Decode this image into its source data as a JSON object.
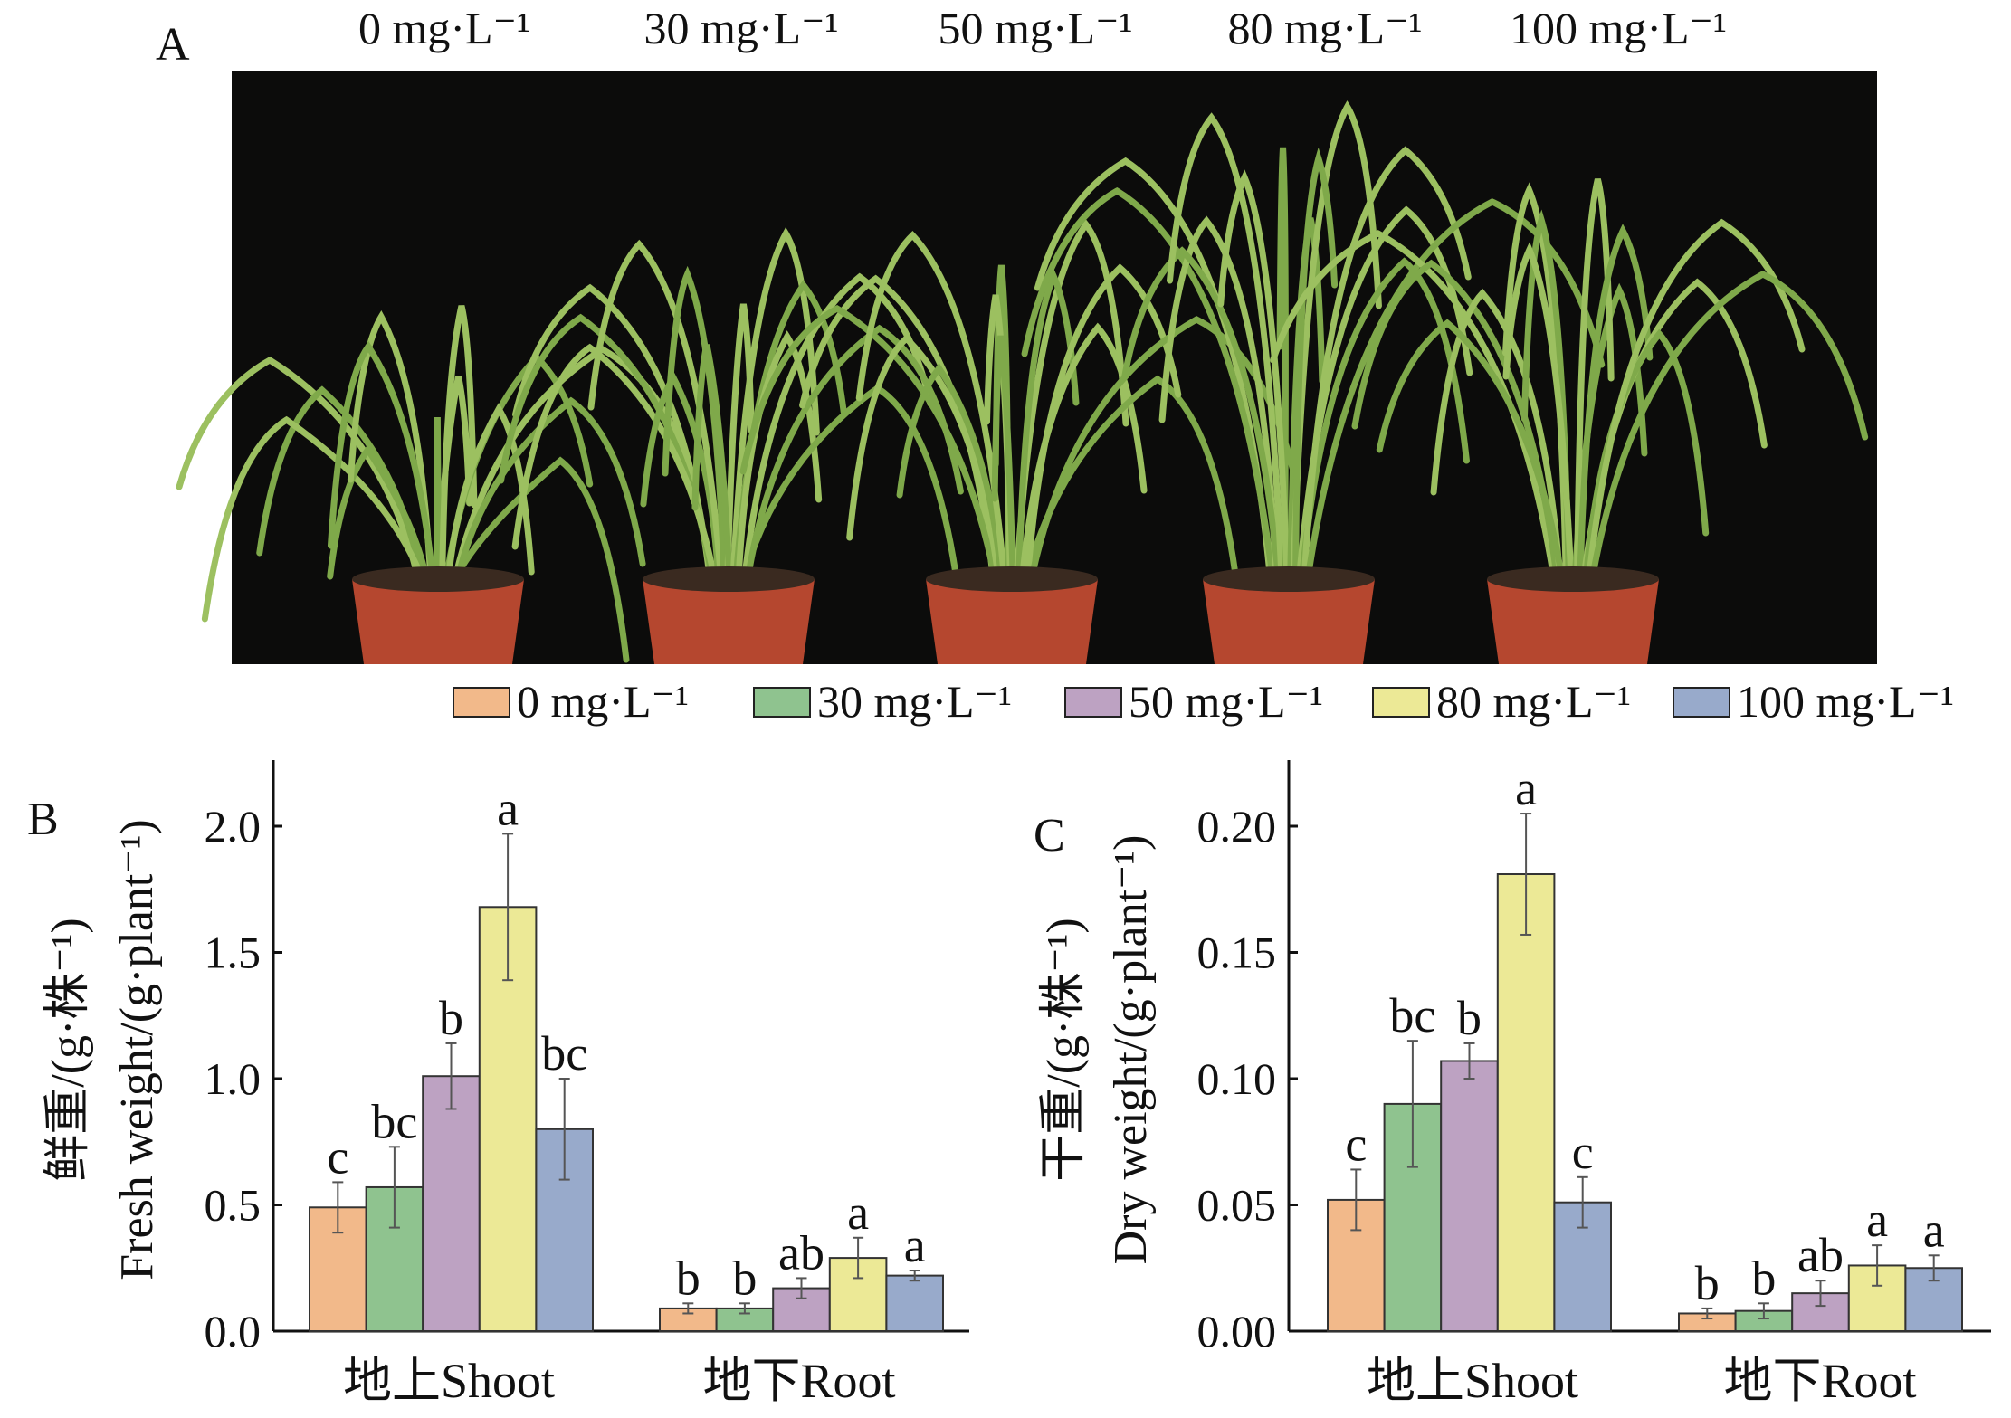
{
  "panel_labels": {
    "a": "A",
    "b": "B",
    "c": "C"
  },
  "photo": {
    "concentration_labels": [
      "0 mg·L⁻¹",
      "30 mg·L⁻¹",
      "50 mg·L⁻¹",
      "80 mg·L⁻¹",
      "100 mg·L⁻¹"
    ]
  },
  "legend": {
    "placement": "top",
    "items": [
      {
        "label": "0 mg·L⁻¹",
        "color": "#f2b98a"
      },
      {
        "label": "30 mg·L⁻¹",
        "color": "#8fc38f"
      },
      {
        "label": "50 mg·L⁻¹",
        "color": "#bda2c2"
      },
      {
        "label": "80 mg·L⁻¹",
        "color": "#ece996"
      },
      {
        "label": "100 mg·L⁻¹",
        "color": "#98aacb"
      }
    ]
  },
  "chart_data": [
    {
      "type": "bar",
      "panel": "B",
      "ylabel_cn": "鲜重/(g·株⁻¹)",
      "ylabel": "Fresh weight/(g·plant⁻¹)",
      "categories": [
        "地上Shoot",
        "地下Root"
      ],
      "ylim": [
        0,
        2.25
      ],
      "yticks": [
        0,
        0.5,
        1.0,
        1.5,
        2.0
      ],
      "ytick_labels": [
        "0.0",
        "0.5",
        "1.0",
        "1.5",
        "2.0"
      ],
      "series": [
        {
          "name": "0 mg·L⁻¹",
          "values": [
            0.49,
            0.09
          ],
          "errors": [
            0.1,
            0.02
          ],
          "letters": [
            "c",
            "b"
          ]
        },
        {
          "name": "30 mg·L⁻¹",
          "values": [
            0.57,
            0.09
          ],
          "errors": [
            0.16,
            0.02
          ],
          "letters": [
            "bc",
            "b"
          ]
        },
        {
          "name": "50 mg·L⁻¹",
          "values": [
            1.01,
            0.17
          ],
          "errors": [
            0.13,
            0.04
          ],
          "letters": [
            "b",
            "ab"
          ]
        },
        {
          "name": "80 mg·L⁻¹",
          "values": [
            1.68,
            0.29
          ],
          "errors": [
            0.29,
            0.08
          ],
          "letters": [
            "a",
            "a"
          ]
        },
        {
          "name": "100 mg·L⁻¹",
          "values": [
            0.8,
            0.22
          ],
          "errors": [
            0.2,
            0.02
          ],
          "letters": [
            "bc",
            "a"
          ]
        }
      ]
    },
    {
      "type": "bar",
      "panel": "C",
      "ylabel_cn": "干重/(g·株⁻¹)",
      "ylabel": "Dry weight/(g·plant⁻¹)",
      "categories": [
        "地上Shoot",
        "地下Root"
      ],
      "ylim": [
        0,
        0.225
      ],
      "yticks": [
        0,
        0.05,
        0.1,
        0.15,
        0.2
      ],
      "ytick_labels": [
        "0.00",
        "0.05",
        "0.10",
        "0.15",
        "0.20"
      ],
      "series": [
        {
          "name": "0 mg·L⁻¹",
          "values": [
            0.052,
            0.007
          ],
          "errors": [
            0.012,
            0.002
          ],
          "letters": [
            "c",
            "b"
          ]
        },
        {
          "name": "30 mg·L⁻¹",
          "values": [
            0.09,
            0.008
          ],
          "errors": [
            0.025,
            0.003
          ],
          "letters": [
            "bc",
            "b"
          ]
        },
        {
          "name": "50 mg·L⁻¹",
          "values": [
            0.107,
            0.015
          ],
          "errors": [
            0.007,
            0.005
          ],
          "letters": [
            "b",
            "ab"
          ]
        },
        {
          "name": "80 mg·L⁻¹",
          "values": [
            0.181,
            0.026
          ],
          "errors": [
            0.024,
            0.008
          ],
          "letters": [
            "a",
            "a"
          ]
        },
        {
          "name": "100 mg·L⁻¹",
          "values": [
            0.051,
            0.025
          ],
          "errors": [
            0.01,
            0.005
          ],
          "letters": [
            "c",
            "a"
          ]
        }
      ]
    }
  ]
}
